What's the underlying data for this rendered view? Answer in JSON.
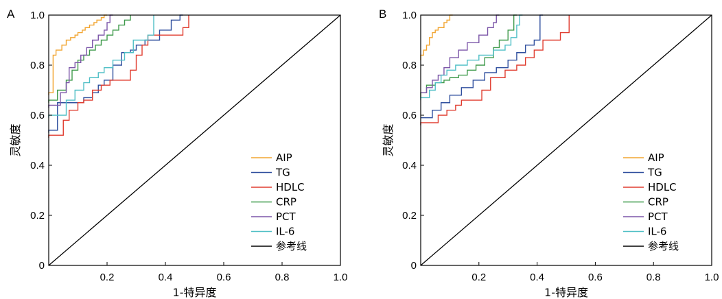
{
  "colors": {
    "AIP": "#f2a531",
    "TG": "#2f4f9e",
    "HDLC": "#e03b2e",
    "CRP": "#3f9a4b",
    "PCT": "#7b55a8",
    "IL-6": "#4fbfc6",
    "ref": "#000000"
  },
  "chart_data": [
    {
      "type": "line",
      "panel": "A",
      "xlabel": "1-特异度",
      "ylabel": "灵敏度",
      "xlim": [
        0,
        1
      ],
      "ylim": [
        0,
        1
      ],
      "xticks": [
        "0.2",
        "0.4",
        "0.6",
        "0.8",
        "1.0"
      ],
      "yticks": [
        "0",
        "0.2",
        "0.4",
        "0.6",
        "0.8",
        "1.0"
      ],
      "legend_position": "bottom-right",
      "series": [
        {
          "name": "AIP",
          "x": [
            0,
            0,
            0.015,
            0.015,
            0.025,
            0.025,
            0.045,
            0.045,
            0.06,
            0.06,
            0.075,
            0.075,
            0.09,
            0.09,
            0.1,
            0.1,
            0.115,
            0.115,
            0.125,
            0.125,
            0.14,
            0.14,
            0.155,
            0.155,
            0.165,
            0.165,
            0.18,
            0.18,
            0.19,
            0.19,
            0.2
          ],
          "y": [
            0.68,
            0.69,
            0.69,
            0.84,
            0.84,
            0.86,
            0.86,
            0.88,
            0.88,
            0.9,
            0.9,
            0.91,
            0.91,
            0.92,
            0.92,
            0.93,
            0.93,
            0.94,
            0.94,
            0.95,
            0.95,
            0.96,
            0.96,
            0.97,
            0.97,
            0.98,
            0.98,
            0.99,
            0.99,
            1.0,
            1.0
          ]
        },
        {
          "name": "TG",
          "x": [
            0,
            0,
            0.03,
            0.03,
            0.12,
            0.12,
            0.15,
            0.15,
            0.17,
            0.17,
            0.19,
            0.19,
            0.22,
            0.22,
            0.25,
            0.25,
            0.28,
            0.28,
            0.3,
            0.3,
            0.33,
            0.33,
            0.38,
            0.38,
            0.42,
            0.42,
            0.45,
            0.45,
            0.46
          ],
          "y": [
            0.53,
            0.54,
            0.54,
            0.65,
            0.65,
            0.67,
            0.67,
            0.69,
            0.69,
            0.72,
            0.72,
            0.74,
            0.74,
            0.8,
            0.8,
            0.85,
            0.85,
            0.86,
            0.86,
            0.88,
            0.88,
            0.9,
            0.9,
            0.94,
            0.94,
            0.98,
            0.98,
            1.0,
            1.0
          ]
        },
        {
          "name": "HDLC",
          "x": [
            0,
            0,
            0.05,
            0.05,
            0.07,
            0.07,
            0.1,
            0.1,
            0.12,
            0.12,
            0.15,
            0.15,
            0.18,
            0.18,
            0.21,
            0.21,
            0.28,
            0.28,
            0.3,
            0.3,
            0.32,
            0.32,
            0.34,
            0.34,
            0.46,
            0.46,
            0.48,
            0.48
          ],
          "y": [
            0.51,
            0.52,
            0.52,
            0.58,
            0.58,
            0.62,
            0.62,
            0.65,
            0.65,
            0.66,
            0.66,
            0.7,
            0.7,
            0.72,
            0.72,
            0.74,
            0.74,
            0.78,
            0.78,
            0.84,
            0.84,
            0.88,
            0.88,
            0.92,
            0.92,
            0.95,
            0.95,
            1.0
          ]
        },
        {
          "name": "CRP",
          "x": [
            0,
            0,
            0.03,
            0.03,
            0.06,
            0.06,
            0.08,
            0.08,
            0.1,
            0.1,
            0.12,
            0.12,
            0.14,
            0.14,
            0.16,
            0.16,
            0.18,
            0.18,
            0.2,
            0.2,
            0.22,
            0.22,
            0.24,
            0.24,
            0.26,
            0.26,
            0.28,
            0.28
          ],
          "y": [
            0.65,
            0.66,
            0.66,
            0.7,
            0.7,
            0.74,
            0.74,
            0.78,
            0.78,
            0.82,
            0.82,
            0.84,
            0.84,
            0.86,
            0.86,
            0.88,
            0.88,
            0.9,
            0.9,
            0.92,
            0.92,
            0.94,
            0.94,
            0.96,
            0.96,
            0.98,
            0.98,
            1.0
          ]
        },
        {
          "name": "PCT",
          "x": [
            0,
            0,
            0.04,
            0.04,
            0.06,
            0.06,
            0.07,
            0.07,
            0.09,
            0.09,
            0.11,
            0.11,
            0.13,
            0.13,
            0.15,
            0.15,
            0.17,
            0.17,
            0.19,
            0.19,
            0.2,
            0.2,
            0.21,
            0.21,
            0.22
          ],
          "y": [
            0.63,
            0.64,
            0.64,
            0.69,
            0.69,
            0.73,
            0.73,
            0.79,
            0.79,
            0.81,
            0.81,
            0.84,
            0.84,
            0.87,
            0.87,
            0.9,
            0.9,
            0.92,
            0.92,
            0.94,
            0.94,
            0.97,
            0.97,
            1.0,
            1.0
          ]
        },
        {
          "name": "IL-6",
          "x": [
            0,
            0,
            0.06,
            0.06,
            0.09,
            0.09,
            0.12,
            0.12,
            0.14,
            0.14,
            0.17,
            0.17,
            0.19,
            0.19,
            0.22,
            0.22,
            0.26,
            0.26,
            0.29,
            0.29,
            0.34,
            0.34,
            0.36,
            0.36
          ],
          "y": [
            0.59,
            0.6,
            0.6,
            0.66,
            0.66,
            0.7,
            0.7,
            0.73,
            0.73,
            0.75,
            0.75,
            0.77,
            0.77,
            0.79,
            0.79,
            0.82,
            0.82,
            0.85,
            0.85,
            0.9,
            0.9,
            0.92,
            0.92,
            1.0
          ]
        },
        {
          "name": "参考线",
          "x": [
            0,
            1
          ],
          "y": [
            0,
            1
          ]
        }
      ]
    },
    {
      "type": "line",
      "panel": "B",
      "xlabel": "1-特异度",
      "ylabel": "灵敏度",
      "xlim": [
        0,
        1
      ],
      "ylim": [
        0,
        1
      ],
      "xticks": [
        "0.2",
        "0.4",
        "0.6",
        "0.8",
        "1.0"
      ],
      "yticks": [
        "0",
        "0.2",
        "0.4",
        "0.6",
        "0.8",
        "1.0"
      ],
      "legend_position": "bottom-right",
      "series": [
        {
          "name": "AIP",
          "x": [
            0,
            0,
            0.01,
            0.01,
            0.02,
            0.02,
            0.03,
            0.03,
            0.04,
            0.04,
            0.05,
            0.05,
            0.06,
            0.06,
            0.08,
            0.08,
            0.09,
            0.09,
            0.1,
            0.1,
            0.11
          ],
          "y": [
            0.82,
            0.84,
            0.84,
            0.86,
            0.86,
            0.88,
            0.88,
            0.91,
            0.91,
            0.93,
            0.93,
            0.94,
            0.94,
            0.95,
            0.95,
            0.97,
            0.97,
            0.98,
            0.98,
            1.0,
            1.0
          ]
        },
        {
          "name": "TG",
          "x": [
            0,
            0,
            0.04,
            0.04,
            0.07,
            0.07,
            0.1,
            0.1,
            0.14,
            0.14,
            0.18,
            0.18,
            0.22,
            0.22,
            0.26,
            0.26,
            0.3,
            0.3,
            0.33,
            0.33,
            0.36,
            0.36,
            0.39,
            0.39,
            0.41,
            0.41,
            0.42
          ],
          "y": [
            0.59,
            0.59,
            0.59,
            0.62,
            0.62,
            0.65,
            0.65,
            0.68,
            0.68,
            0.71,
            0.71,
            0.74,
            0.74,
            0.77,
            0.77,
            0.79,
            0.79,
            0.82,
            0.82,
            0.85,
            0.85,
            0.88,
            0.88,
            0.9,
            0.9,
            1.0,
            1.0
          ]
        },
        {
          "name": "HDLC",
          "x": [
            0,
            0,
            0.06,
            0.06,
            0.09,
            0.09,
            0.12,
            0.12,
            0.14,
            0.14,
            0.21,
            0.21,
            0.24,
            0.24,
            0.29,
            0.29,
            0.33,
            0.33,
            0.36,
            0.36,
            0.39,
            0.39,
            0.42,
            0.42,
            0.48,
            0.48,
            0.51,
            0.51
          ],
          "y": [
            0.56,
            0.57,
            0.57,
            0.6,
            0.6,
            0.62,
            0.62,
            0.64,
            0.64,
            0.66,
            0.66,
            0.7,
            0.7,
            0.75,
            0.75,
            0.78,
            0.78,
            0.8,
            0.8,
            0.83,
            0.83,
            0.86,
            0.86,
            0.9,
            0.9,
            0.93,
            0.93,
            1.0
          ]
        },
        {
          "name": "CRP",
          "x": [
            0,
            0,
            0.02,
            0.02,
            0.05,
            0.05,
            0.08,
            0.08,
            0.1,
            0.1,
            0.13,
            0.13,
            0.16,
            0.16,
            0.19,
            0.19,
            0.22,
            0.22,
            0.25,
            0.25,
            0.27,
            0.27,
            0.3,
            0.3,
            0.32,
            0.32,
            0.33
          ],
          "y": [
            0.67,
            0.69,
            0.69,
            0.72,
            0.72,
            0.73,
            0.73,
            0.74,
            0.74,
            0.75,
            0.75,
            0.76,
            0.76,
            0.78,
            0.78,
            0.8,
            0.8,
            0.83,
            0.83,
            0.87,
            0.87,
            0.9,
            0.9,
            0.94,
            0.94,
            1.0,
            1.0
          ]
        },
        {
          "name": "PCT",
          "x": [
            0,
            0,
            0.02,
            0.02,
            0.04,
            0.04,
            0.06,
            0.06,
            0.08,
            0.08,
            0.1,
            0.1,
            0.13,
            0.13,
            0.16,
            0.16,
            0.2,
            0.2,
            0.23,
            0.23,
            0.25,
            0.25,
            0.26,
            0.26,
            0.27
          ],
          "y": [
            0.69,
            0.69,
            0.69,
            0.71,
            0.71,
            0.74,
            0.74,
            0.76,
            0.76,
            0.79,
            0.79,
            0.83,
            0.83,
            0.86,
            0.86,
            0.89,
            0.89,
            0.92,
            0.92,
            0.95,
            0.95,
            0.97,
            0.97,
            1.0,
            1.0
          ]
        },
        {
          "name": "IL-6",
          "x": [
            0,
            0,
            0.03,
            0.03,
            0.05,
            0.05,
            0.07,
            0.07,
            0.09,
            0.09,
            0.12,
            0.12,
            0.16,
            0.16,
            0.2,
            0.2,
            0.25,
            0.25,
            0.29,
            0.29,
            0.31,
            0.31,
            0.33,
            0.33,
            0.34,
            0.34,
            0.35
          ],
          "y": [
            0.66,
            0.67,
            0.67,
            0.7,
            0.7,
            0.73,
            0.73,
            0.76,
            0.76,
            0.78,
            0.78,
            0.8,
            0.8,
            0.82,
            0.82,
            0.84,
            0.84,
            0.86,
            0.86,
            0.88,
            0.88,
            0.91,
            0.91,
            0.96,
            0.96,
            1.0,
            1.0
          ]
        },
        {
          "name": "参考线",
          "x": [
            0,
            1
          ],
          "y": [
            0,
            1
          ]
        }
      ]
    }
  ]
}
